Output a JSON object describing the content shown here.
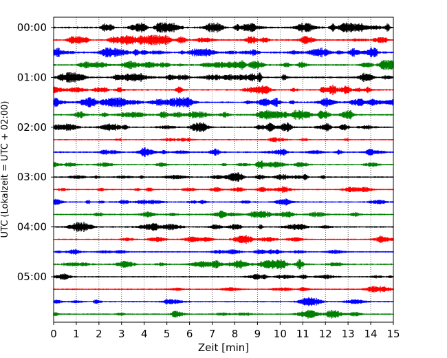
{
  "chart_data": {
    "type": "line",
    "title": "",
    "xlabel": "Zeit  [min]",
    "ylabel": "UTC (Lokalzeit = UTC + 02:00)",
    "xlim": [
      0,
      15
    ],
    "x_ticks": [
      "0",
      "1",
      "2",
      "3",
      "4",
      "5",
      "6",
      "7",
      "8",
      "9",
      "10",
      "11",
      "12",
      "13",
      "14",
      "15"
    ],
    "y_ticks": [
      {
        "label": "00:00",
        "trace": 0
      },
      {
        "label": "01:00",
        "trace": 4
      },
      {
        "label": "02:00",
        "trace": 8
      },
      {
        "label": "03:00",
        "trace": 12
      },
      {
        "label": "04:00",
        "trace": 16
      },
      {
        "label": "05:00",
        "trace": 20
      }
    ],
    "grid": "vertical dotted",
    "series_colors": [
      "#000000",
      "#ff0000",
      "#0000ff",
      "#008000"
    ],
    "traces": [
      {
        "start": "00:00",
        "color": "#000000",
        "activity": 0.9
      },
      {
        "start": "00:15",
        "color": "#ff0000",
        "activity": 0.8
      },
      {
        "start": "00:30",
        "color": "#0000ff",
        "activity": 0.85
      },
      {
        "start": "00:45",
        "color": "#008000",
        "activity": 0.7
      },
      {
        "start": "01:00",
        "color": "#000000",
        "activity": 0.75
      },
      {
        "start": "01:15",
        "color": "#ff0000",
        "activity": 0.55
      },
      {
        "start": "01:30",
        "color": "#0000ff",
        "activity": 0.85
      },
      {
        "start": "01:45",
        "color": "#008000",
        "activity": 0.8
      },
      {
        "start": "02:00",
        "color": "#000000",
        "activity": 0.65
      },
      {
        "start": "02:15",
        "color": "#ff0000",
        "activity": 0.1
      },
      {
        "start": "02:30",
        "color": "#0000ff",
        "activity": 0.45
      },
      {
        "start": "02:45",
        "color": "#008000",
        "activity": 0.35
      },
      {
        "start": "03:00",
        "color": "#000000",
        "activity": 0.4
      },
      {
        "start": "03:15",
        "color": "#ff0000",
        "activity": 0.3
      },
      {
        "start": "03:30",
        "color": "#0000ff",
        "activity": 0.35
      },
      {
        "start": "03:45",
        "color": "#008000",
        "activity": 0.45
      },
      {
        "start": "04:00",
        "color": "#000000",
        "activity": 0.45
      },
      {
        "start": "04:15",
        "color": "#ff0000",
        "activity": 0.3
      },
      {
        "start": "04:30",
        "color": "#0000ff",
        "activity": 0.35
      },
      {
        "start": "04:45",
        "color": "#008000",
        "activity": 0.6
      },
      {
        "start": "05:00",
        "color": "#000000",
        "activity": 0.25
      },
      {
        "start": "05:15",
        "color": "#ff0000",
        "activity": 0.2
      },
      {
        "start": "05:30",
        "color": "#0000ff",
        "activity": 0.3
      },
      {
        "start": "05:45",
        "color": "#008000",
        "activity": 0.35
      }
    ]
  }
}
